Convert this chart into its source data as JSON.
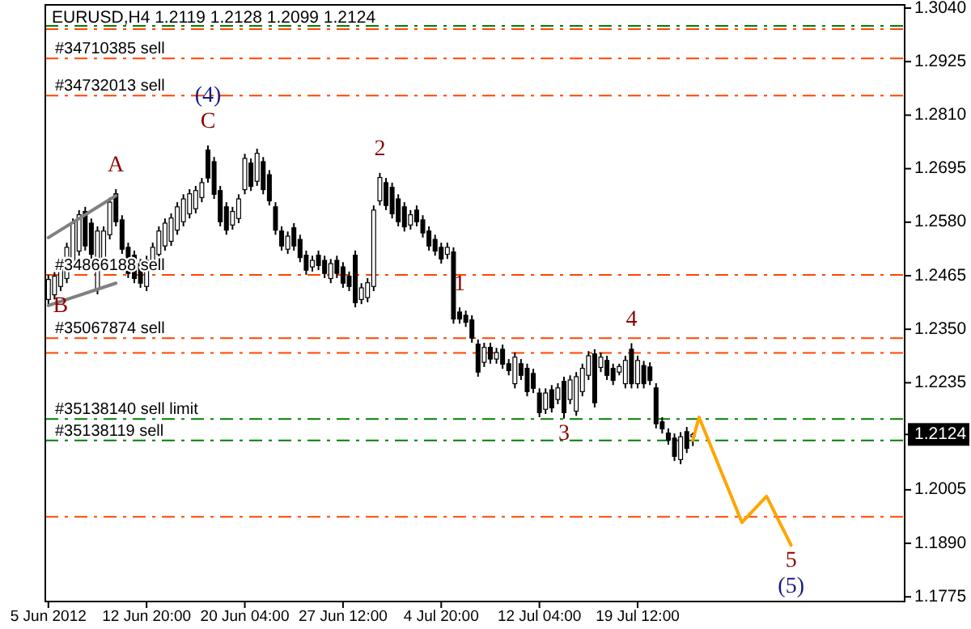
{
  "chart_data": {
    "type": "candlestick",
    "title": "EURUSD,H4  1.2119 1.2128 1.2099 1.2124",
    "color": "#000000",
    "categories": [
      "5 Jun 2012",
      null,
      null,
      null,
      null,
      null,
      null,
      null,
      null,
      null,
      null,
      null,
      null,
      null,
      null,
      null,
      "12 Jun 20:00",
      null,
      null,
      null,
      null,
      null,
      null,
      null,
      null,
      null,
      null,
      null,
      null,
      null,
      null,
      null,
      "20 Jun 04:00",
      null,
      null,
      null,
      null,
      null,
      null,
      null,
      null,
      null,
      null,
      null,
      null,
      null,
      null,
      null,
      "27 Jun 12:00",
      null,
      null,
      null,
      null,
      null,
      null,
      null,
      null,
      null,
      null,
      null,
      null,
      null,
      null,
      null,
      "4 Jul 20:00",
      null,
      null,
      null,
      null,
      null,
      null,
      null,
      null,
      null,
      null,
      null,
      null,
      null,
      null,
      null,
      "12 Jul 04:00",
      null,
      null,
      null,
      null,
      null,
      null,
      null,
      null,
      null,
      null,
      null,
      null,
      null,
      null,
      null,
      "19 Jul 12:00",
      null,
      null,
      null,
      null,
      null,
      null,
      null,
      null,
      null,
      null,
      null,
      null,
      null,
      null,
      null,
      null,
      null,
      null,
      null,
      null,
      null,
      null,
      null,
      null,
      null,
      null,
      null,
      null,
      null,
      null,
      null,
      null,
      null,
      null,
      null,
      null,
      null,
      null,
      null,
      null,
      null,
      null,
      null
    ],
    "ohlc": [
      [
        1.2414,
        1.2467,
        1.2404,
        1.2457
      ],
      [
        1.2424,
        1.2474,
        1.2414,
        1.2464
      ],
      [
        1.2442,
        1.2501,
        1.2432,
        1.2491
      ],
      [
        1.2459,
        1.2536,
        1.2449,
        1.2526
      ],
      [
        1.2494,
        1.2588,
        1.2484,
        1.2578
      ],
      [
        1.2518,
        1.2606,
        1.2508,
        1.2596
      ],
      [
        1.2603,
        1.2613,
        1.2519,
        1.2529
      ],
      [
        1.2578,
        1.2588,
        1.2501,
        1.2511
      ],
      [
        1.2435,
        1.2571,
        1.2425,
        1.2561
      ],
      [
        1.2494,
        1.2571,
        1.2484,
        1.2561
      ],
      [
        1.2553,
        1.2633,
        1.2543,
        1.2623
      ],
      [
        1.2641,
        1.2651,
        1.2571,
        1.2581
      ],
      [
        1.2585,
        1.2595,
        1.2512,
        1.2522
      ],
      [
        1.2526,
        1.2536,
        1.246,
        1.247
      ],
      [
        1.2509,
        1.2519,
        1.2449,
        1.2459
      ],
      [
        1.2491,
        1.2501,
        1.2439,
        1.2449
      ],
      [
        1.2442,
        1.2508,
        1.2432,
        1.2498
      ],
      [
        1.2484,
        1.2536,
        1.2474,
        1.2526
      ],
      [
        1.2511,
        1.2571,
        1.2501,
        1.2561
      ],
      [
        1.2529,
        1.2588,
        1.2519,
        1.2578
      ],
      [
        1.2539,
        1.2599,
        1.2529,
        1.2589
      ],
      [
        1.2563,
        1.2623,
        1.2553,
        1.2613
      ],
      [
        1.2581,
        1.264,
        1.2571,
        1.263
      ],
      [
        1.2598,
        1.2651,
        1.2588,
        1.2641
      ],
      [
        1.2609,
        1.2658,
        1.2599,
        1.2648
      ],
      [
        1.2633,
        1.2675,
        1.2623,
        1.2665
      ],
      [
        1.2735,
        1.2745,
        1.2665,
        1.2675
      ],
      [
        1.271,
        1.272,
        1.263,
        1.264
      ],
      [
        1.2648,
        1.2658,
        1.2571,
        1.2581
      ],
      [
        1.2613,
        1.2623,
        1.2553,
        1.2563
      ],
      [
        1.2574,
        1.2613,
        1.2564,
        1.2603
      ],
      [
        1.2588,
        1.264,
        1.2578,
        1.263
      ],
      [
        1.265,
        1.2727,
        1.264,
        1.2717
      ],
      [
        1.2707,
        1.2717,
        1.2647,
        1.2657
      ],
      [
        1.2668,
        1.2738,
        1.2658,
        1.2728
      ],
      [
        1.271,
        1.272,
        1.264,
        1.265
      ],
      [
        1.2682,
        1.2692,
        1.2616,
        1.2626
      ],
      [
        1.2613,
        1.2623,
        1.2553,
        1.2563
      ],
      [
        1.2561,
        1.2571,
        1.2519,
        1.2529
      ],
      [
        1.2522,
        1.256,
        1.2512,
        1.255
      ],
      [
        1.2568,
        1.2578,
        1.2519,
        1.2529
      ],
      [
        1.2543,
        1.2553,
        1.2494,
        1.2504
      ],
      [
        1.2509,
        1.2519,
        1.2467,
        1.2477
      ],
      [
        1.2484,
        1.2508,
        1.2474,
        1.2498
      ],
      [
        1.2509,
        1.2519,
        1.2477,
        1.2487
      ],
      [
        1.2498,
        1.2508,
        1.246,
        1.247
      ],
      [
        1.2459,
        1.2501,
        1.2449,
        1.2491
      ],
      [
        1.2498,
        1.2508,
        1.246,
        1.247
      ],
      [
        1.2484,
        1.2494,
        1.2439,
        1.2449
      ],
      [
        1.2464,
        1.2474,
        1.2432,
        1.2442
      ],
      [
        1.2509,
        1.2519,
        1.2397,
        1.2407
      ],
      [
        1.2414,
        1.2449,
        1.2404,
        1.2439
      ],
      [
        1.2418,
        1.246,
        1.2408,
        1.245
      ],
      [
        1.2442,
        1.2616,
        1.2432,
        1.2606
      ],
      [
        1.2626,
        1.2686,
        1.2616,
        1.2676
      ],
      [
        1.2665,
        1.2675,
        1.2606,
        1.2616
      ],
      [
        1.2655,
        1.2665,
        1.2588,
        1.2598
      ],
      [
        1.263,
        1.264,
        1.2571,
        1.2581
      ],
      [
        1.2613,
        1.2623,
        1.256,
        1.257
      ],
      [
        1.2574,
        1.2606,
        1.2564,
        1.2596
      ],
      [
        1.2606,
        1.2616,
        1.2571,
        1.2581
      ],
      [
        1.2585,
        1.2595,
        1.2547,
        1.2557
      ],
      [
        1.2561,
        1.2571,
        1.2519,
        1.2529
      ],
      [
        1.2543,
        1.2553,
        1.2508,
        1.2518
      ],
      [
        1.2526,
        1.2536,
        1.2491,
        1.2501
      ],
      [
        1.2511,
        1.2536,
        1.2501,
        1.2526
      ],
      [
        1.2516,
        1.2526,
        1.2362,
        1.2372
      ],
      [
        1.2387,
        1.2397,
        1.2362,
        1.2372
      ],
      [
        1.238,
        1.239,
        1.2355,
        1.2365
      ],
      [
        1.237,
        1.238,
        1.2321,
        1.2331
      ],
      [
        1.2318,
        1.2328,
        1.2248,
        1.2258
      ],
      [
        1.2279,
        1.2321,
        1.2269,
        1.2311
      ],
      [
        1.2311,
        1.2321,
        1.2276,
        1.2286
      ],
      [
        1.2286,
        1.231,
        1.2276,
        1.23
      ],
      [
        1.2307,
        1.2317,
        1.2265,
        1.2275
      ],
      [
        1.2276,
        1.2286,
        1.2251,
        1.2261
      ],
      [
        1.2233,
        1.23,
        1.2223,
        1.229
      ],
      [
        1.2276,
        1.2286,
        1.2241,
        1.2251
      ],
      [
        1.2266,
        1.2276,
        1.2206,
        1.2216
      ],
      [
        1.2255,
        1.2265,
        1.2213,
        1.2223
      ],
      [
        1.2213,
        1.2223,
        1.2161,
        1.2171
      ],
      [
        1.2178,
        1.2223,
        1.2168,
        1.2213
      ],
      [
        1.222,
        1.223,
        1.2171,
        1.2181
      ],
      [
        1.2199,
        1.2234,
        1.2189,
        1.2224
      ],
      [
        1.2238,
        1.2248,
        1.2158,
        1.2171
      ],
      [
        1.2199,
        1.2251,
        1.2189,
        1.2241
      ],
      [
        1.2174,
        1.2258,
        1.2164,
        1.2248
      ],
      [
        1.2216,
        1.2276,
        1.2206,
        1.2266
      ],
      [
        1.2251,
        1.2303,
        1.2241,
        1.2293
      ],
      [
        1.2297,
        1.2307,
        1.2182,
        1.2192
      ],
      [
        1.2268,
        1.23,
        1.2258,
        1.229
      ],
      [
        1.2283,
        1.2293,
        1.2241,
        1.2251
      ],
      [
        1.2266,
        1.2276,
        1.223,
        1.224
      ],
      [
        1.2258,
        1.2276,
        1.2251,
        1.227
      ],
      [
        1.2233,
        1.2293,
        1.2223,
        1.2283
      ],
      [
        1.2307,
        1.232,
        1.2223,
        1.2233
      ],
      [
        1.2233,
        1.2293,
        1.2223,
        1.2283
      ],
      [
        1.2272,
        1.2282,
        1.2223,
        1.2233
      ],
      [
        1.2269,
        1.2279,
        1.223,
        1.224
      ],
      [
        1.2224,
        1.2234,
        1.2137,
        1.2147
      ],
      [
        1.2151,
        1.2161,
        1.2126,
        1.2136
      ],
      [
        1.2127,
        1.2137,
        1.2102,
        1.2112
      ],
      [
        1.2116,
        1.2126,
        1.2067,
        1.2077
      ],
      [
        1.207,
        1.2129,
        1.206,
        1.2119
      ],
      [
        1.213,
        1.214,
        1.2084,
        1.2094
      ],
      [
        1.2119,
        1.2128,
        1.2099,
        1.2124
      ],
      null,
      null,
      null,
      null,
      null,
      null,
      null,
      null,
      null,
      null,
      null,
      null,
      null,
      null,
      null,
      null,
      null,
      null,
      null,
      null,
      null,
      null,
      null,
      null,
      null,
      null,
      null,
      null,
      null,
      null,
      null,
      null,
      null,
      null
    ],
    "series": [
      {
        "type": "line",
        "color": "#808080",
        "values": [
          1.2547,
          null,
          null,
          null,
          null,
          null,
          null,
          null,
          null,
          null,
          null,
          1.2637,
          null,
          null,
          null,
          null,
          null,
          null,
          null,
          null,
          null,
          null,
          null,
          null,
          null,
          null,
          null,
          null,
          null,
          null,
          null,
          null,
          null,
          null,
          null,
          null,
          null,
          null,
          null,
          null,
          null,
          null,
          null,
          null,
          null,
          null,
          null,
          null,
          null,
          null,
          null,
          null,
          null,
          null,
          null,
          null,
          null,
          null,
          null,
          null,
          null,
          null,
          null,
          null,
          null,
          null,
          null,
          null,
          null,
          null,
          null,
          null,
          null,
          null,
          null,
          null,
          null,
          null,
          null,
          null,
          null,
          null,
          null,
          null,
          null,
          null,
          null,
          null,
          null,
          null,
          null,
          null,
          null,
          null,
          null,
          null,
          null,
          null,
          null,
          null,
          null,
          null,
          null,
          null,
          null,
          null,
          null,
          null,
          null,
          null,
          null,
          null,
          null,
          null,
          null,
          null,
          null,
          null,
          null,
          null,
          null,
          null,
          null,
          null,
          null,
          null,
          null,
          null,
          null,
          null,
          null,
          null,
          null,
          null,
          null,
          null,
          null,
          null,
          null,
          null
        ]
      },
      {
        "type": "line",
        "color": "#808080",
        "values": [
          1.2401,
          null,
          null,
          null,
          null,
          null,
          null,
          null,
          null,
          null,
          null,
          1.2449,
          null,
          null,
          null,
          null,
          null,
          null,
          null,
          null,
          null,
          null,
          null,
          null,
          null,
          null,
          null,
          null,
          null,
          null,
          null,
          null,
          null,
          null,
          null,
          null,
          null,
          null,
          null,
          null,
          null,
          null,
          null,
          null,
          null,
          null,
          null,
          null,
          null,
          null,
          null,
          null,
          null,
          null,
          null,
          null,
          null,
          null,
          null,
          null,
          null,
          null,
          null,
          null,
          null,
          null,
          null,
          null,
          null,
          null,
          null,
          null,
          null,
          null,
          null,
          null,
          null,
          null,
          null,
          null,
          null,
          null,
          null,
          null,
          null,
          null,
          null,
          null,
          null,
          null,
          null,
          null,
          null,
          null,
          null,
          null,
          null,
          null,
          null,
          null,
          null,
          null,
          null,
          null,
          null,
          null,
          null,
          null,
          null,
          null,
          null,
          null,
          null,
          null,
          null,
          null,
          null,
          null,
          null,
          null,
          null,
          null,
          null,
          null,
          null,
          null,
          null,
          null,
          null,
          null,
          null,
          null,
          null,
          null,
          null,
          null,
          null,
          null,
          null,
          null
        ]
      },
      {
        "type": "line",
        "color": "#ffa500",
        "values": [
          null,
          null,
          null,
          null,
          null,
          null,
          null,
          null,
          null,
          null,
          null,
          null,
          null,
          null,
          null,
          null,
          null,
          null,
          null,
          null,
          null,
          null,
          null,
          null,
          null,
          null,
          null,
          null,
          null,
          null,
          null,
          null,
          null,
          null,
          null,
          null,
          null,
          null,
          null,
          null,
          null,
          null,
          null,
          null,
          null,
          null,
          null,
          null,
          null,
          null,
          null,
          null,
          null,
          null,
          null,
          null,
          null,
          null,
          null,
          null,
          null,
          null,
          null,
          null,
          null,
          null,
          null,
          null,
          null,
          null,
          null,
          null,
          null,
          null,
          null,
          null,
          null,
          null,
          null,
          null,
          null,
          null,
          null,
          null,
          null,
          null,
          null,
          null,
          null,
          null,
          null,
          null,
          null,
          null,
          null,
          null,
          null,
          null,
          null,
          null,
          null,
          null,
          null,
          null,
          null,
          1.2112,
          1.2161,
          null,
          null,
          null,
          null,
          null,
          null,
          1.1935,
          null,
          null,
          null,
          1.1991,
          null,
          null,
          null,
          1.1886,
          null,
          null,
          null,
          null,
          null,
          null,
          null,
          null,
          null,
          null,
          null,
          null,
          null,
          null,
          null,
          null,
          null,
          null
        ]
      }
    ],
    "ylim": [
      1.1765,
      1.3047
    ],
    "yticks": [
      {
        "value": 1.304,
        "label": "1.3040"
      },
      {
        "value": 1.2925,
        "label": "1.2925"
      },
      {
        "value": 1.281,
        "label": "1.2810"
      },
      {
        "value": 1.2695,
        "label": "1.2695"
      },
      {
        "value": 1.258,
        "label": "1.2580"
      },
      {
        "value": 1.2465,
        "label": "1.2465"
      },
      {
        "value": 1.235,
        "label": "1.2350"
      },
      {
        "value": 1.2235,
        "label": "1.2235"
      },
      {
        "value": 1.2124,
        "label": "1.2124"
      },
      {
        "value": 1.2005,
        "label": "1.2005"
      },
      {
        "value": 1.189,
        "label": "1.1890"
      },
      {
        "value": 1.1775,
        "label": "1.1775"
      }
    ],
    "ref_lines": [
      {
        "axis": "y",
        "value": 1.3002,
        "color": "#008000",
        "line_style": "dashed"
      },
      {
        "axis": "y",
        "value": 1.2995,
        "color": "#ff4500",
        "line_style": "dashed"
      },
      {
        "axis": "y",
        "value": 1.2932,
        "color": "#ff4500",
        "line_style": "dashed",
        "label": "#34710385 sell"
      },
      {
        "axis": "y",
        "value": 1.2852,
        "color": "#ff4500",
        "line_style": "dashed",
        "label": "#34732013 sell"
      },
      {
        "axis": "y",
        "value": 1.2467,
        "color": "#ff4500",
        "line_style": "dashed",
        "label": "#34866188 sell"
      },
      {
        "axis": "y",
        "value": 1.2331,
        "color": "#ff4500",
        "line_style": "dashed",
        "label": "#35067874 sell"
      },
      {
        "axis": "y",
        "value": 1.2299,
        "color": "#ff4500",
        "line_style": "dashed"
      },
      {
        "axis": "y",
        "value": 1.2157,
        "color": "#008000",
        "line_style": "dashed",
        "label": "#35138140 sell limit"
      },
      {
        "axis": "y",
        "value": 1.2111,
        "color": "#008000",
        "line_style": "dashed",
        "label": "#35138119 sell"
      },
      {
        "axis": "y",
        "value": 1.1947,
        "color": "#ff4500",
        "line_style": "dashed"
      }
    ],
    "annotations": [
      {
        "text": "A",
        "y": 1.2651
      },
      {
        "text": "B",
        "y": 1.2432
      },
      {
        "text": "C",
        "y": 1.2745
      },
      {
        "text": "(4)",
        "y": 1.2745
      },
      {
        "text": "1",
        "y": 1.2397
      },
      {
        "text": "2",
        "y": 1.2686
      },
      {
        "text": "3",
        "y": 1.2158
      },
      {
        "text": "4",
        "y": 1.232
      },
      {
        "text": "5",
        "y": 1.1886
      },
      {
        "text": "(5)",
        "y": 1.1886
      }
    ],
    "grid": false
  }
}
